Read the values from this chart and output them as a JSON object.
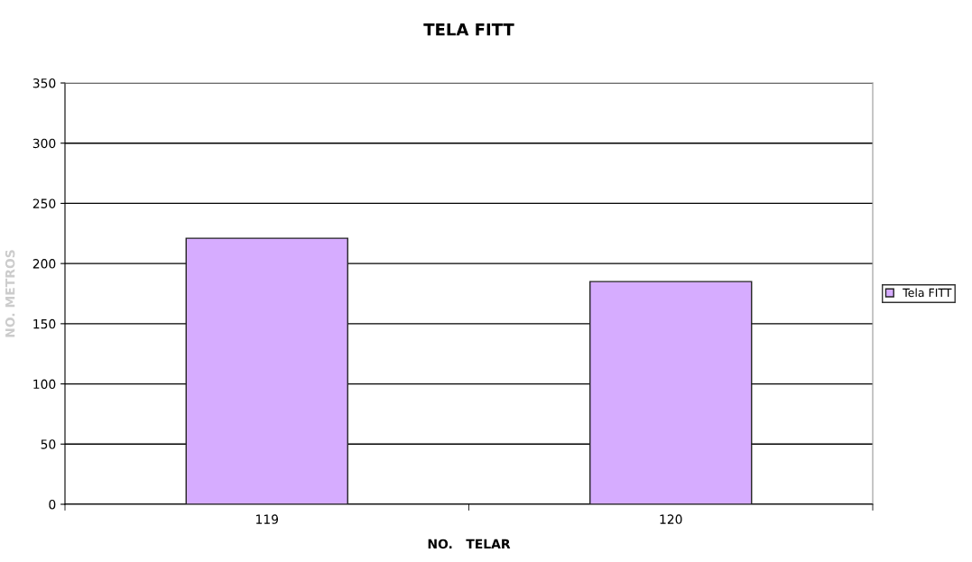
{
  "chart_data": {
    "type": "bar",
    "title": "TELA FITT",
    "xlabel": "NO.   TELAR",
    "ylabel": "NO. METROS",
    "categories": [
      "119",
      "120"
    ],
    "series": [
      {
        "name": "Tela FITT",
        "color": "#d6acff",
        "values": [
          221,
          185
        ]
      }
    ],
    "ylim": [
      0,
      350
    ],
    "yticks": [
      0,
      50,
      100,
      150,
      200,
      250,
      300,
      350
    ],
    "grid": "y",
    "legend": "right"
  }
}
